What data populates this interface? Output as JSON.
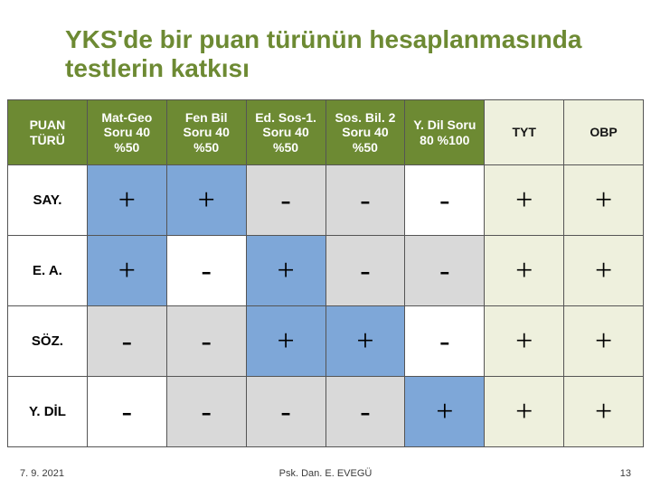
{
  "title": "YKS'de bir puan türünün hesaplanmasında testlerin katkısı",
  "colors": {
    "green_header": "#6d8a33",
    "white_text": "#ffffff",
    "pale_yellow": "#eef0dd",
    "gray_cell": "#d9d9d9",
    "white_cell": "#ffffff",
    "blue_cell": "#7ea7d8"
  },
  "columns": [
    {
      "label": "PUAN TÜRÜ",
      "bg_key": "green_header",
      "fg_key": "white_text"
    },
    {
      "label": "Mat-Geo Soru 40 %50",
      "bg_key": "green_header",
      "fg_key": "white_text"
    },
    {
      "label": "Fen Bil Soru 40 %50",
      "bg_key": "green_header",
      "fg_key": "white_text"
    },
    {
      "label": "Ed. Sos-1. Soru 40 %50",
      "bg_key": "green_header",
      "fg_key": "white_text"
    },
    {
      "label": "Sos. Bil. 2 Soru 40 %50",
      "bg_key": "green_header",
      "fg_key": "white_text"
    },
    {
      "label": "Y. Dil Soru 80 %100",
      "bg_key": "green_header",
      "fg_key": "white_text"
    },
    {
      "label": "TYT",
      "bg_key": "pale_yellow",
      "fg_key": ""
    },
    {
      "label": "OBP",
      "bg_key": "pale_yellow",
      "fg_key": ""
    }
  ],
  "rows": [
    {
      "label": "SAY.",
      "cells": [
        {
          "v": "+",
          "bg_key": "blue_cell"
        },
        {
          "v": "+",
          "bg_key": "blue_cell"
        },
        {
          "v": "-",
          "bg_key": "gray_cell"
        },
        {
          "v": "-",
          "bg_key": "gray_cell"
        },
        {
          "v": "-",
          "bg_key": "white_cell"
        },
        {
          "v": "+",
          "bg_key": "pale_yellow"
        },
        {
          "v": "+",
          "bg_key": "pale_yellow"
        }
      ]
    },
    {
      "label": "E. A.",
      "cells": [
        {
          "v": "+",
          "bg_key": "blue_cell"
        },
        {
          "v": "-",
          "bg_key": "white_cell"
        },
        {
          "v": "+",
          "bg_key": "blue_cell"
        },
        {
          "v": "-",
          "bg_key": "gray_cell"
        },
        {
          "v": "-",
          "bg_key": "gray_cell"
        },
        {
          "v": "+",
          "bg_key": "pale_yellow"
        },
        {
          "v": "+",
          "bg_key": "pale_yellow"
        }
      ]
    },
    {
      "label": "SÖZ.",
      "cells": [
        {
          "v": "-",
          "bg_key": "gray_cell"
        },
        {
          "v": "-",
          "bg_key": "gray_cell"
        },
        {
          "v": "+",
          "bg_key": "blue_cell"
        },
        {
          "v": "+",
          "bg_key": "blue_cell"
        },
        {
          "v": "-",
          "bg_key": "white_cell"
        },
        {
          "v": "+",
          "bg_key": "pale_yellow"
        },
        {
          "v": "+",
          "bg_key": "pale_yellow"
        }
      ]
    },
    {
      "label": "Y. DİL",
      "cells": [
        {
          "v": "-",
          "bg_key": "white_cell"
        },
        {
          "v": "-",
          "bg_key": "gray_cell"
        },
        {
          "v": "-",
          "bg_key": "gray_cell"
        },
        {
          "v": "-",
          "bg_key": "gray_cell"
        },
        {
          "v": "+",
          "bg_key": "blue_cell"
        },
        {
          "v": "+",
          "bg_key": "pale_yellow"
        },
        {
          "v": "+",
          "bg_key": "pale_yellow"
        }
      ]
    }
  ],
  "footer": {
    "date": "7. 9. 2021",
    "author": "Psk. Dan. E. EVEGÜ",
    "page": "13"
  }
}
